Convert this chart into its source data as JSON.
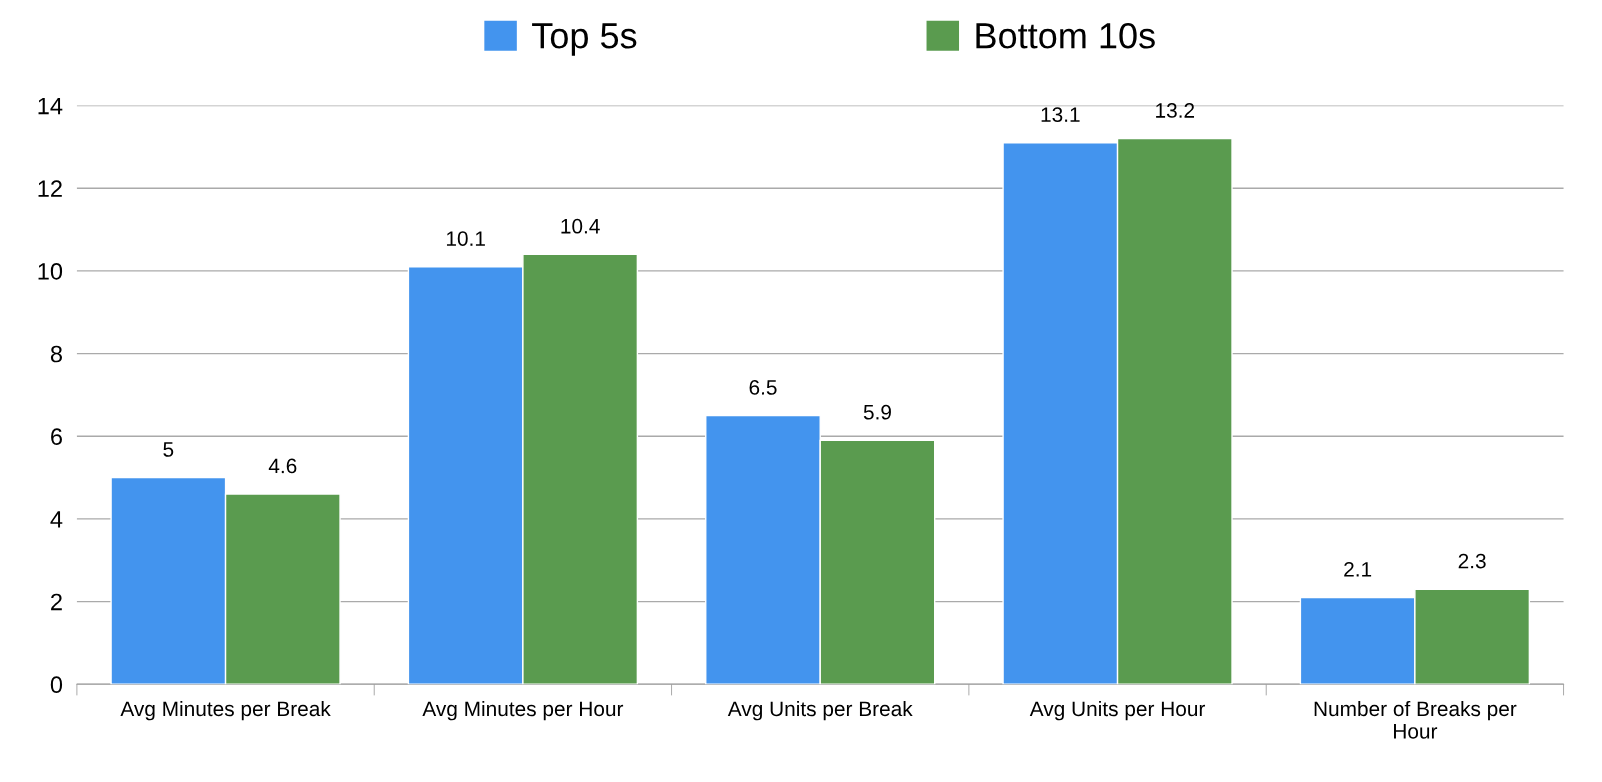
{
  "chart_data": {
    "type": "bar",
    "categories": [
      "Avg Minutes per Break",
      "Avg Minutes per Hour",
      "Avg Units per Break",
      "Avg Units per Hour",
      "Number of Breaks per Hour"
    ],
    "series": [
      {
        "name": "Top 5s",
        "color": "#4394ee",
        "values": [
          5,
          10.1,
          6.5,
          13.1,
          2.1
        ]
      },
      {
        "name": "Bottom 10s",
        "color": "#5a9b4f",
        "values": [
          4.6,
          10.4,
          5.9,
          13.2,
          2.3
        ]
      }
    ],
    "ylim": [
      0,
      14
    ],
    "yticks": [
      0,
      2,
      4,
      6,
      8,
      10,
      12,
      14
    ],
    "grid": "y",
    "legend": "top",
    "data_labels": true
  }
}
